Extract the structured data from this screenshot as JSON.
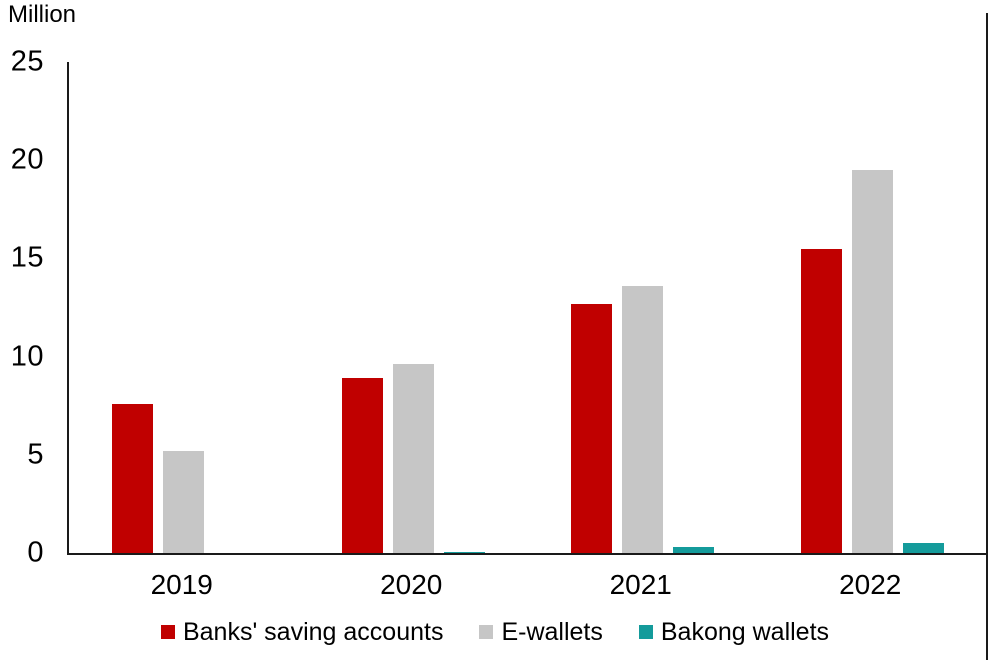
{
  "header": {
    "unit_label": "Million"
  },
  "colors": {
    "banks_red": "#C00000",
    "ewallets_gray": "#C6C6C6",
    "bakong_teal": "#149B9B",
    "axis_line": "#1a1a1a",
    "text": "#000000"
  },
  "chart_data": {
    "type": "bar",
    "title": "",
    "unit_label": "Million",
    "categories": [
      "2019",
      "2020",
      "2021",
      "2022"
    ],
    "series": [
      {
        "name": "Banks' saving accounts",
        "color": "#C00000",
        "values": [
          7.6,
          8.9,
          12.7,
          15.5
        ]
      },
      {
        "name": "E-wallets",
        "color": "#C6C6C6",
        "values": [
          5.2,
          9.6,
          13.6,
          19.5
        ]
      },
      {
        "name": "Bakong wallets",
        "color": "#149B9B",
        "values": [
          0,
          0.06,
          0.3,
          0.5
        ]
      }
    ],
    "y_axis": {
      "min": 0,
      "max": 25,
      "tick_step": 5,
      "ticks": [
        25,
        20,
        15,
        10,
        5,
        0
      ],
      "label": "Million"
    },
    "x_axis": {
      "ticks": [
        "2019",
        "2020",
        "2021",
        "2022"
      ]
    },
    "legend_position": "bottom",
    "grid": false
  }
}
